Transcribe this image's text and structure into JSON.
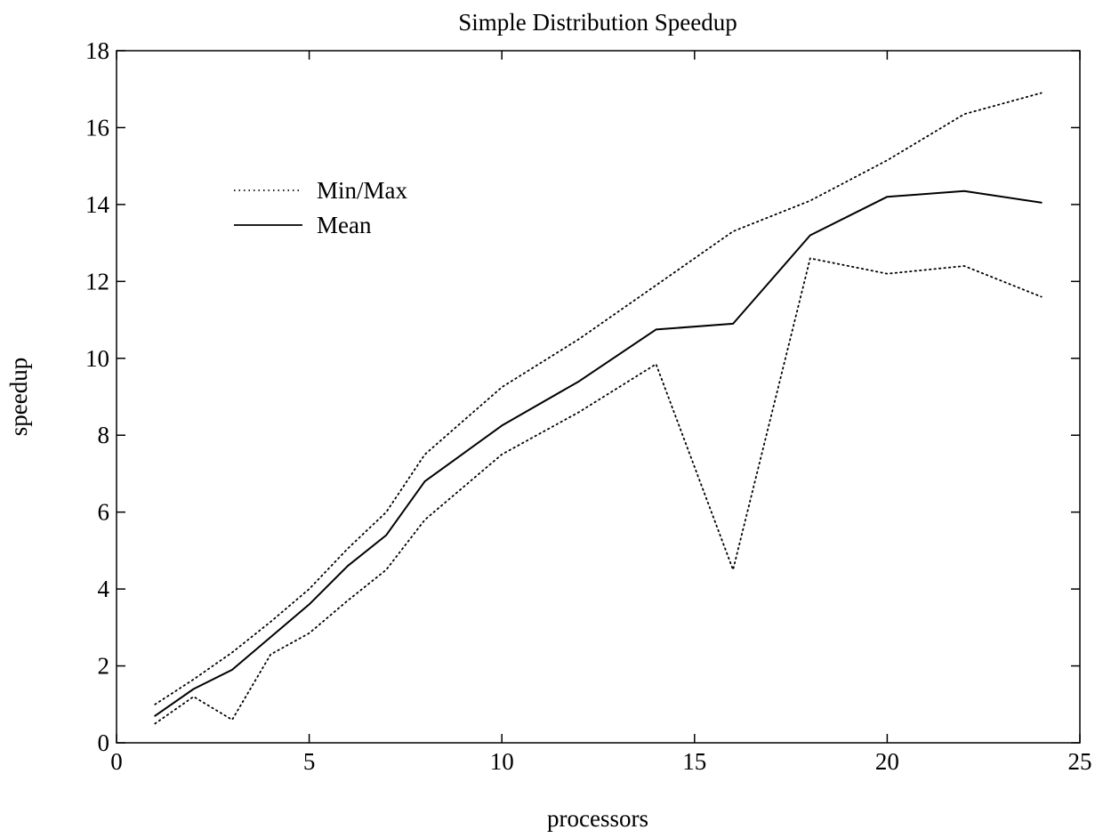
{
  "chart_data": {
    "type": "line",
    "title": "Simple Distribution Speedup",
    "xlabel": "processors",
    "ylabel": "speedup",
    "xlim": [
      0,
      25
    ],
    "ylim": [
      0,
      18
    ],
    "x_ticks": [
      0,
      5,
      10,
      15,
      20,
      25
    ],
    "y_ticks": [
      0,
      2,
      4,
      6,
      8,
      10,
      12,
      14,
      16,
      18
    ],
    "grid": false,
    "legend": {
      "placement": "top-left",
      "entries": [
        {
          "label": "Min/Max",
          "style": "dotted"
        },
        {
          "label": "Mean",
          "style": "solid"
        }
      ]
    },
    "series": [
      {
        "name": "Mean",
        "style": "solid",
        "x": [
          1,
          2,
          3,
          4,
          5,
          6,
          7,
          8,
          10,
          12,
          14,
          16,
          18,
          20,
          22,
          24
        ],
        "y": [
          0.7,
          1.4,
          1.9,
          2.75,
          3.6,
          4.6,
          5.4,
          6.8,
          8.25,
          9.4,
          10.75,
          10.9,
          13.2,
          14.2,
          14.35,
          14.05
        ]
      },
      {
        "name": "Min/Max",
        "role": "max",
        "style": "dotted",
        "x": [
          1,
          2,
          3,
          4,
          5,
          6,
          7,
          8,
          10,
          12,
          14,
          16,
          18,
          20,
          22,
          24
        ],
        "y": [
          1.0,
          1.65,
          2.35,
          3.15,
          4.0,
          5.05,
          6.0,
          7.5,
          9.25,
          10.5,
          11.9,
          13.3,
          14.1,
          15.15,
          16.35,
          16.9
        ]
      },
      {
        "name": "Min/Max",
        "role": "min",
        "style": "dotted",
        "x": [
          1,
          2,
          3,
          4,
          5,
          6,
          7,
          8,
          10,
          12,
          14,
          16,
          18,
          20,
          22,
          24
        ],
        "y": [
          0.5,
          1.2,
          0.6,
          2.3,
          2.85,
          3.7,
          4.5,
          5.8,
          7.5,
          8.6,
          9.85,
          4.5,
          12.6,
          12.2,
          12.4,
          11.6
        ]
      }
    ]
  }
}
